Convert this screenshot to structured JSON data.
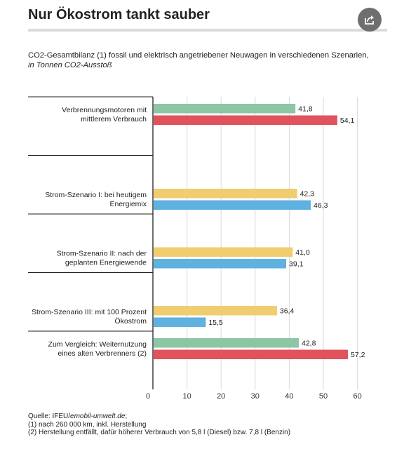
{
  "header": {
    "title": "Nur Ökostrom tankt sauber",
    "share_icon": "share-icon"
  },
  "subtitle": {
    "text": "CO2-Gesamtbilanz (1) fossil und elektrisch angetriebener Neuwagen in verschiedenen Szenarien,",
    "unit": "in Tonnen CO2-Ausstoß"
  },
  "colors": {
    "green": "#8cc6a4",
    "red": "#e0525c",
    "yellow": "#f0cd6e",
    "blue": "#5fb1e0"
  },
  "chart_data": {
    "type": "bar",
    "orientation": "horizontal",
    "xlim": [
      0,
      60
    ],
    "xticks": [
      "0",
      "10",
      "20",
      "30",
      "40",
      "50",
      "60"
    ],
    "grid": true,
    "categories": [
      {
        "label": [
          "Verbrennungsmotoren mit",
          "mittlerem Verbrauch"
        ],
        "bars": [
          {
            "value": 41.8,
            "label": "41,8",
            "color": "#8cc6a4"
          },
          {
            "value": 54.1,
            "label": "54,1",
            "color": "#e0525c"
          }
        ]
      },
      {
        "label": [
          "Strom-Szenario I: bei heutigem",
          "Energiemix"
        ],
        "bars": [
          {
            "value": 42.3,
            "label": "42,3",
            "color": "#f0cd6e"
          },
          {
            "value": 46.3,
            "label": "46,3",
            "color": "#5fb1e0"
          }
        ]
      },
      {
        "label": [
          "Strom-Szenario II: nach der",
          "geplanten Energiewende"
        ],
        "bars": [
          {
            "value": 41.0,
            "label": "41,0",
            "color": "#f0cd6e"
          },
          {
            "value": 39.1,
            "label": "39,1",
            "color": "#5fb1e0"
          }
        ]
      },
      {
        "label": [
          "Strom-Szenario III: mit 100 Prozent",
          "Ökostrom"
        ],
        "bars": [
          {
            "value": 36.4,
            "label": "36,4",
            "color": "#f0cd6e"
          },
          {
            "value": 15.5,
            "label": "15,5",
            "color": "#5fb1e0"
          }
        ]
      },
      {
        "label": [
          "Zum Vergleich: Weiternutzung",
          "eines alten Verbrenners (2)"
        ],
        "bars": [
          {
            "value": 42.8,
            "label": "42,8",
            "color": "#8cc6a4"
          },
          {
            "value": 57.2,
            "label": "57,2",
            "color": "#e0525c"
          }
        ]
      }
    ]
  },
  "footer": {
    "source_prefix": "Quelle: IFEU/",
    "source_link": "emobil-umwelt.de",
    "source_suffix": ";",
    "note1": "(1) nach 260 000 km, inkl. Herstellung",
    "note2": "(2) Herstellung entfällt, dafür höherer Verbrauch von 5,8 l (Diesel) bzw. 7,8 l (Benzin)"
  }
}
